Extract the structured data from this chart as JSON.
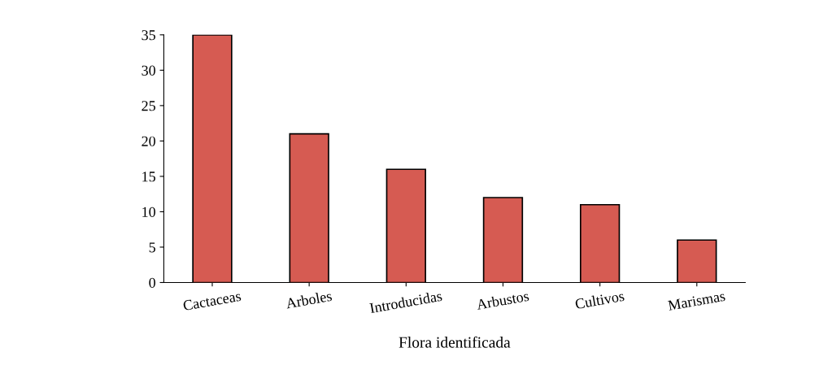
{
  "chart_data": {
    "type": "bar",
    "xlabel": "Flora identificada",
    "categories": [
      "Cactaceas",
      "Arboles",
      "Introducidas",
      "Arbustos",
      "Cultivos",
      "Marismas"
    ],
    "values": [
      35,
      21,
      16,
      12,
      11,
      6
    ],
    "color": "#d65b52",
    "ylim": [
      0,
      35
    ],
    "yticks": [
      0,
      5,
      10,
      15,
      20,
      25,
      30,
      35
    ],
    "grid": false
  }
}
